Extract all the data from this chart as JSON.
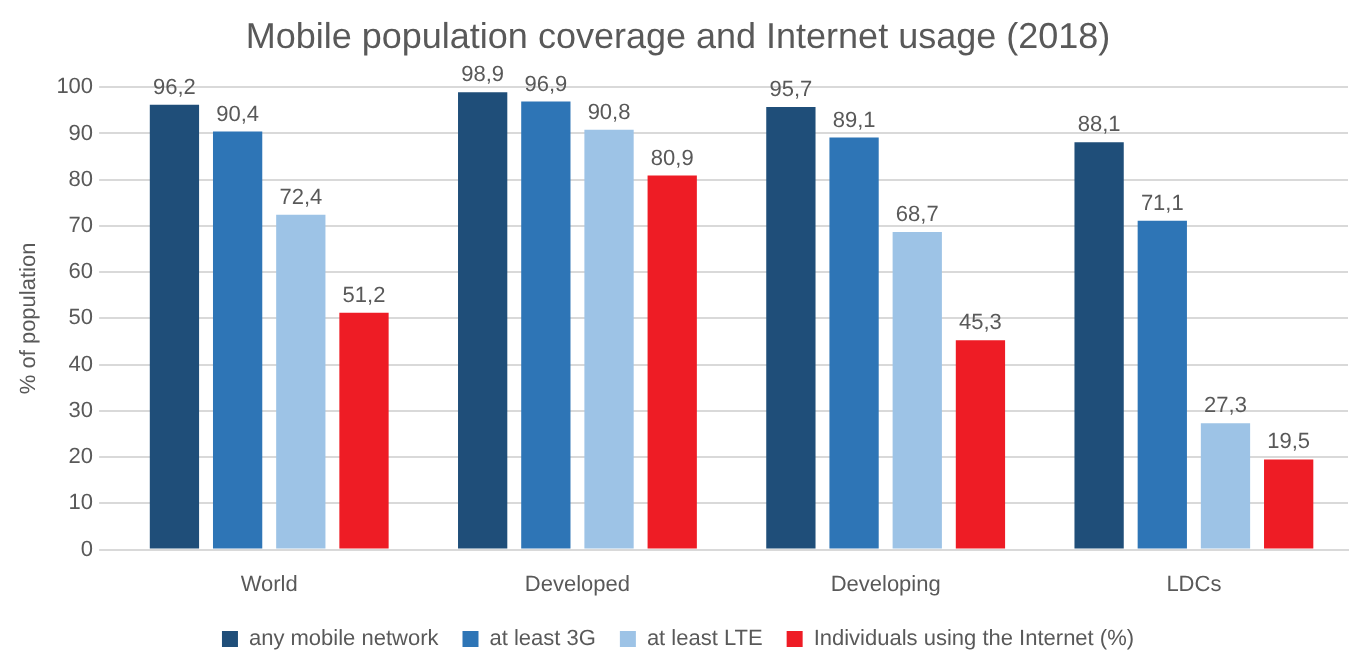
{
  "chart_data": {
    "type": "bar",
    "title": "Mobile population coverage and Internet usage (2018)",
    "ylabel": "% of population",
    "categories": [
      "World",
      "Developed",
      "Developing",
      "LDCs"
    ],
    "series": [
      {
        "name": "any mobile network",
        "color": "#1f4e79",
        "values": [
          96.2,
          98.9,
          95.7,
          88.1
        ],
        "value_labels": [
          "96,2",
          "98,9",
          "95,7",
          "88,1"
        ]
      },
      {
        "name": "at least 3G",
        "color": "#2e75b6",
        "values": [
          90.4,
          96.9,
          89.1,
          71.1
        ],
        "value_labels": [
          "90,4",
          "96,9",
          "89,1",
          "71,1"
        ]
      },
      {
        "name": "at least LTE",
        "color": "#9dc3e6",
        "values": [
          72.4,
          90.8,
          68.7,
          27.3
        ],
        "value_labels": [
          "72,4",
          "90,8",
          "68,7",
          "27,3"
        ]
      },
      {
        "name": "Individuals using the Internet (%)",
        "color": "#ee1c25",
        "values": [
          51.2,
          80.9,
          45.3,
          19.5
        ],
        "value_labels": [
          "51,2",
          "80,9",
          "45,3",
          "19,5"
        ]
      }
    ],
    "ylim": [
      0,
      100
    ],
    "yticks": [
      0,
      10,
      20,
      30,
      40,
      50,
      60,
      70,
      80,
      90,
      100
    ],
    "grid": "y",
    "legend": "bottom"
  }
}
